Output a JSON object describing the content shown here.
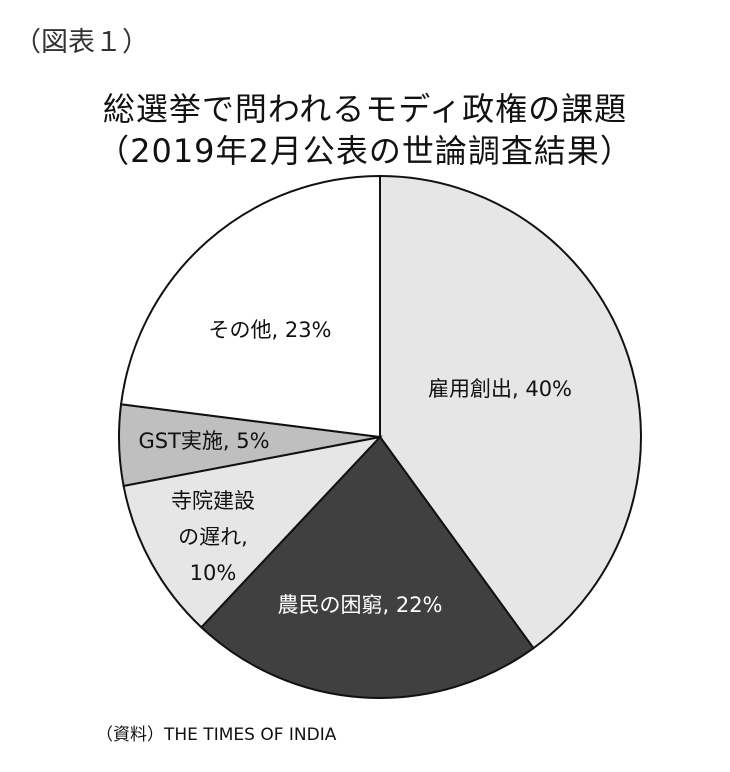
{
  "figure_label": "（図表１）",
  "source": "（資料）THE TIMES OF INDIA",
  "chart_data": {
    "type": "pie",
    "title": "総選挙で問われるモディ政権の課題",
    "subtitle": "（2019年2月公表の世論調査結果）",
    "slices": [
      {
        "label": "雇用創出",
        "value": 40,
        "color": "#e6e6e6",
        "text_color": "#111111",
        "lines": [
          "雇用創出, 40%"
        ]
      },
      {
        "label": "農民の困窮",
        "value": 22,
        "color": "#404040",
        "text_color": "#ffffff",
        "lines": [
          "農民の困窮, 22%"
        ]
      },
      {
        "label": "寺院建設の遅れ",
        "value": 10,
        "color": "#e6e6e6",
        "text_color": "#111111",
        "lines": [
          "寺院建設",
          "の遅れ,",
          "10%"
        ]
      },
      {
        "label": "GST実施",
        "value": 5,
        "color": "#bfbfbf",
        "text_color": "#111111",
        "lines": [
          "GST実施, 5%"
        ]
      },
      {
        "label": "その他",
        "value": 23,
        "color": "#ffffff",
        "text_color": "#111111",
        "lines": [
          "その他, 23%"
        ]
      }
    ],
    "unit": "%",
    "legend": "none",
    "labels_inside": true
  }
}
